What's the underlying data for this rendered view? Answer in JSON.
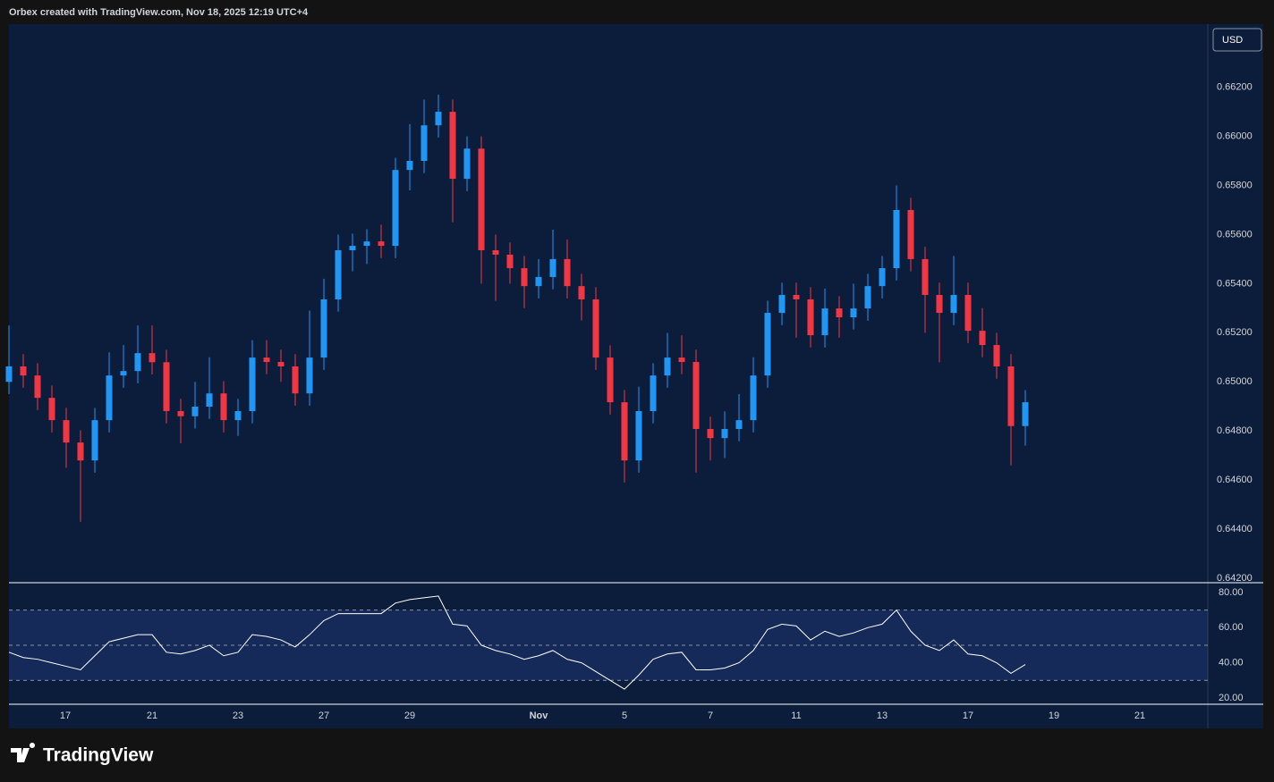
{
  "header": {
    "attribution": "Orbex created with TradingView.com, Nov 18, 2025 12:19 UTC+4"
  },
  "footer": {
    "brand": "TradingView"
  },
  "chart_data": [
    {
      "type": "candlestick",
      "currency": "USD",
      "up_color": "#2196f3",
      "down_color": "#f23645",
      "x": [
        0,
        1,
        2,
        3,
        4,
        5,
        6,
        7,
        8,
        9,
        10,
        11,
        12,
        13,
        14,
        15,
        16,
        17,
        18,
        19,
        20,
        21,
        22,
        23,
        24,
        25,
        26,
        27,
        28,
        29,
        30,
        31,
        32,
        33,
        34,
        35,
        36,
        37,
        38,
        39,
        40,
        41,
        42,
        43,
        44,
        45,
        46,
        47,
        48,
        49,
        50,
        51,
        52,
        53,
        54,
        55,
        56,
        57,
        58,
        59,
        60,
        61,
        62,
        63,
        64,
        65,
        66,
        67,
        68,
        69,
        70,
        71
      ],
      "open": [
        0.65,
        0.65063,
        0.65026,
        0.64935,
        0.64844,
        0.64753,
        0.6468,
        0.64844,
        0.65026,
        0.65044,
        0.65117,
        0.6508,
        0.64881,
        0.6486,
        0.64899,
        0.64953,
        0.64844,
        0.64881,
        0.65099,
        0.65081,
        0.65063,
        0.64953,
        0.65099,
        0.65336,
        0.65536,
        0.65554,
        0.65572,
        0.65554,
        0.65863,
        0.659,
        0.66045,
        0.661,
        0.65827,
        0.6595,
        0.65536,
        0.65518,
        0.65463,
        0.6539,
        0.65427,
        0.655,
        0.6539,
        0.65336,
        0.65099,
        0.64917,
        0.6468,
        0.64881,
        0.65026,
        0.65099,
        0.65081,
        0.64808,
        0.64771,
        0.64808,
        0.64844,
        0.65026,
        0.65281,
        0.65354,
        0.65336,
        0.6519,
        0.65299,
        0.65263,
        0.65299,
        0.6539,
        0.65463,
        0.657,
        0.655,
        0.65354,
        0.65281,
        0.65354,
        0.65208,
        0.6515,
        0.65063,
        0.6482
      ],
      "high": [
        0.6523,
        0.65113,
        0.65076,
        0.64985,
        0.64894,
        0.64803,
        0.64894,
        0.6512,
        0.6515,
        0.6523,
        0.6523,
        0.6513,
        0.64931,
        0.65,
        0.651,
        0.65003,
        0.64931,
        0.6517,
        0.6517,
        0.65131,
        0.65113,
        0.6529,
        0.6542,
        0.656,
        0.65604,
        0.65622,
        0.6564,
        0.65913,
        0.6605,
        0.6615,
        0.6617,
        0.6615,
        0.66,
        0.66,
        0.656,
        0.65568,
        0.65513,
        0.655,
        0.6562,
        0.6558,
        0.6544,
        0.65386,
        0.65149,
        0.64967,
        0.6498,
        0.65076,
        0.652,
        0.6519,
        0.65131,
        0.64858,
        0.6488,
        0.6495,
        0.651,
        0.65331,
        0.65404,
        0.65404,
        0.65386,
        0.6538,
        0.65349,
        0.654,
        0.6544,
        0.65513,
        0.658,
        0.6575,
        0.6555,
        0.65404,
        0.65513,
        0.65404,
        0.653,
        0.652,
        0.65113,
        0.64967
      ],
      "low": [
        0.6495,
        0.64976,
        0.64885,
        0.64794,
        0.6465,
        0.6443,
        0.6463,
        0.64794,
        0.64976,
        0.64994,
        0.6503,
        0.64831,
        0.6475,
        0.6481,
        0.64849,
        0.64794,
        0.6478,
        0.64831,
        0.65031,
        0.65,
        0.64903,
        0.64903,
        0.65049,
        0.65286,
        0.6545,
        0.6548,
        0.65504,
        0.65504,
        0.6578,
        0.6585,
        0.65995,
        0.6565,
        0.65777,
        0.654,
        0.6533,
        0.654,
        0.653,
        0.6534,
        0.65377,
        0.6534,
        0.6525,
        0.65049,
        0.64867,
        0.6459,
        0.6463,
        0.64831,
        0.64976,
        0.65031,
        0.6463,
        0.6468,
        0.6469,
        0.64758,
        0.64794,
        0.64976,
        0.65231,
        0.6518,
        0.6514,
        0.6514,
        0.6518,
        0.65213,
        0.65249,
        0.6534,
        0.65413,
        0.6545,
        0.652,
        0.6508,
        0.65231,
        0.65158,
        0.651,
        0.65013,
        0.6466,
        0.6474
      ],
      "close": [
        0.65063,
        0.65026,
        0.64935,
        0.64844,
        0.64753,
        0.6468,
        0.64844,
        0.65026,
        0.65044,
        0.65117,
        0.6508,
        0.64881,
        0.6486,
        0.64899,
        0.64953,
        0.64844,
        0.64881,
        0.65099,
        0.65081,
        0.65063,
        0.64953,
        0.65099,
        0.65336,
        0.65536,
        0.65554,
        0.65572,
        0.65554,
        0.65863,
        0.659,
        0.66045,
        0.661,
        0.65827,
        0.6595,
        0.65536,
        0.65518,
        0.65463,
        0.6539,
        0.65427,
        0.655,
        0.6539,
        0.65336,
        0.65099,
        0.64917,
        0.6468,
        0.64881,
        0.65026,
        0.65099,
        0.65081,
        0.64808,
        0.64771,
        0.64808,
        0.64844,
        0.65026,
        0.65281,
        0.65354,
        0.65336,
        0.6519,
        0.65299,
        0.65263,
        0.65299,
        0.6539,
        0.65463,
        0.657,
        0.655,
        0.65354,
        0.65281,
        0.65354,
        0.65208,
        0.6515,
        0.65063,
        0.6482,
        0.64917
      ],
      "xlim": [
        0,
        83.75
      ],
      "ylim": [
        0.64182,
        0.66457
      ],
      "xticks": [
        {
          "value": 3.94,
          "label": "17"
        },
        {
          "value": 10,
          "label": "21"
        },
        {
          "value": 16,
          "label": "23"
        },
        {
          "value": 22,
          "label": "27"
        },
        {
          "value": 28,
          "label": "29"
        },
        {
          "value": 37,
          "label": "Nov"
        },
        {
          "value": 43,
          "label": "5"
        },
        {
          "value": 49,
          "label": "7"
        },
        {
          "value": 55,
          "label": "11"
        },
        {
          "value": 61,
          "label": "13"
        },
        {
          "value": 67,
          "label": "17"
        },
        {
          "value": 73,
          "label": "19"
        },
        {
          "value": 79,
          "label": "21"
        }
      ],
      "yticks": [
        {
          "value": 0.642,
          "label": "0.64200"
        },
        {
          "value": 0.644,
          "label": "0.64400"
        },
        {
          "value": 0.646,
          "label": "0.64600"
        },
        {
          "value": 0.648,
          "label": "0.64800"
        },
        {
          "value": 0.65,
          "label": "0.65000"
        },
        {
          "value": 0.652,
          "label": "0.65200"
        },
        {
          "value": 0.654,
          "label": "0.65400"
        },
        {
          "value": 0.656,
          "label": "0.65600"
        },
        {
          "value": 0.658,
          "label": "0.65800"
        },
        {
          "value": 0.66,
          "label": "0.66000"
        },
        {
          "value": 0.662,
          "label": "0.66200"
        }
      ]
    },
    {
      "type": "line",
      "color": "#ffffff",
      "x": [
        0,
        1,
        2,
        3,
        4,
        5,
        6,
        7,
        8,
        9,
        10,
        11,
        12,
        13,
        14,
        15,
        16,
        17,
        18,
        19,
        20,
        21,
        22,
        23,
        24,
        25,
        26,
        27,
        28,
        29,
        30,
        31,
        32,
        33,
        34,
        35,
        36,
        37,
        38,
        39,
        40,
        41,
        42,
        43,
        44,
        45,
        46,
        47,
        48,
        49,
        50,
        51,
        52,
        53,
        54,
        55,
        56,
        57,
        58,
        59,
        60,
        61,
        62,
        63,
        64,
        65,
        66,
        67,
        68,
        69,
        70,
        71
      ],
      "values": [
        46,
        43,
        42,
        40,
        38,
        36,
        44,
        52,
        54,
        56,
        56,
        46,
        45,
        47,
        50,
        44,
        46,
        56,
        55,
        53,
        49,
        56,
        64,
        68,
        68,
        68,
        68,
        74,
        76,
        77,
        78,
        62,
        61,
        50,
        47,
        45,
        42,
        44,
        47,
        42,
        40,
        35,
        30,
        25,
        33,
        42,
        45,
        46,
        36,
        36,
        37,
        40,
        47,
        59,
        62,
        61,
        53,
        58,
        55,
        57,
        60,
        62,
        70,
        58,
        50,
        47,
        53,
        45,
        44,
        40,
        34,
        39
      ],
      "xlim": [
        0,
        83.75
      ],
      "ylim": [
        16.4,
        85.6
      ],
      "levels": [
        70,
        50,
        30
      ],
      "yticks": [
        {
          "value": 20,
          "label": "20.00"
        },
        {
          "value": 40,
          "label": "40.00"
        },
        {
          "value": 60,
          "label": "60.00"
        },
        {
          "value": 80,
          "label": "80.00"
        }
      ]
    }
  ]
}
